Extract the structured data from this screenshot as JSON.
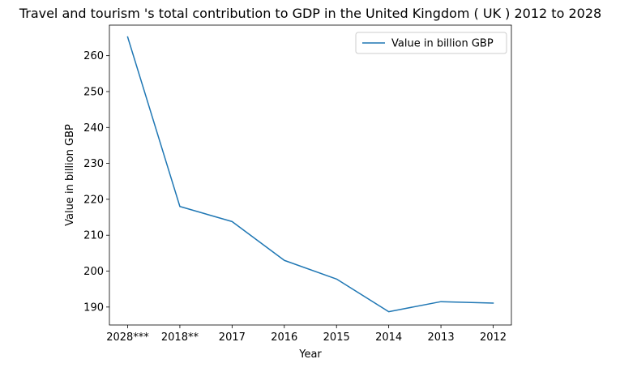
{
  "chart_data": {
    "type": "line",
    "title": "Travel and tourism 's total contribution to GDP in the United Kingdom ( UK ) 2012 to 2028",
    "xlabel": "Year",
    "ylabel": "Value in billion GBP",
    "categories": [
      "2028***",
      "2018**",
      "2017",
      "2016",
      "2015",
      "2014",
      "2013",
      "2012"
    ],
    "series": [
      {
        "name": "Value in billion GBP",
        "values": [
          265.2,
          218.0,
          213.8,
          203.0,
          197.8,
          188.7,
          191.5,
          191.1
        ],
        "color": "#1f77b4"
      }
    ],
    "ylim": [
      185,
      268.5
    ],
    "yticks": [
      190,
      200,
      210,
      220,
      230,
      240,
      250,
      260
    ],
    "grid": false,
    "legend": "top-right"
  }
}
